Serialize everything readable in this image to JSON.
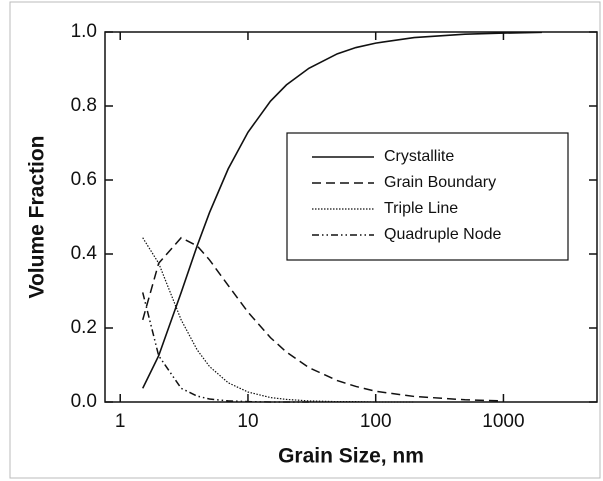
{
  "chart_data": {
    "type": "line",
    "xlabel": "Grain Size, nm",
    "ylabel": "Volume Fraction",
    "xscale": "log",
    "xlim": [
      0.76,
      5400
    ],
    "xticks": [
      1,
      10,
      100,
      1000
    ],
    "ylim": [
      0,
      1
    ],
    "yticks": [
      {
        "value": 0,
        "label": "0.0"
      },
      {
        "value": 0.2,
        "label": "0.2"
      },
      {
        "value": 0.4,
        "label": "0.4"
      },
      {
        "value": 0.6,
        "label": "0.6"
      },
      {
        "value": 0.8,
        "label": "0.8"
      },
      {
        "value": 1,
        "label": "1.0"
      }
    ],
    "legend": "right",
    "x": [
      1.5,
      2,
      3,
      4,
      5,
      7,
      10,
      15,
      20,
      30,
      50,
      70,
      100,
      200,
      500,
      1000,
      2000
    ],
    "series": [
      {
        "name": "Crystallite",
        "color": "#111111",
        "dash": "solid",
        "values": [
          0.037,
          0.125,
          0.296,
          0.422,
          0.512,
          0.63,
          0.729,
          0.813,
          0.857,
          0.902,
          0.941,
          0.958,
          0.97,
          0.985,
          0.994,
          0.997,
          0.999
        ]
      },
      {
        "name": "Grain Boundary",
        "color": "#111111",
        "dash": "dashed",
        "values": [
          0.222,
          0.375,
          0.444,
          0.422,
          0.384,
          0.315,
          0.243,
          0.174,
          0.135,
          0.093,
          0.058,
          0.042,
          0.029,
          0.015,
          0.006,
          0.003,
          null
        ]
      },
      {
        "name": "Triple Line",
        "color": "#111111",
        "dash": "dotted",
        "values": [
          0.444,
          0.375,
          0.222,
          0.141,
          0.096,
          0.052,
          0.027,
          0.012,
          0.007,
          0.003,
          0.001,
          0.001,
          0,
          0,
          null,
          null,
          null
        ]
      },
      {
        "name": "Quadruple Node",
        "color": "#111111",
        "dash": "dashdotdot",
        "values": [
          0.296,
          0.125,
          0.037,
          0.016,
          0.008,
          0.003,
          0.001,
          0,
          0,
          0,
          null,
          null,
          null,
          null,
          null,
          null,
          null
        ]
      }
    ]
  }
}
